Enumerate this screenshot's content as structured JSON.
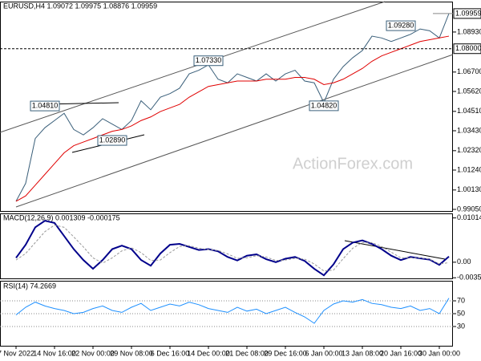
{
  "chart_data": [
    {
      "type": "line",
      "title": "EURUSD,H4 1.09072 1.09975 1.08876 1.09959",
      "watermark": "ActionForex.com",
      "series": [
        {
          "color": "#3a5f7a",
          "values": [
            0.995,
            1.005,
            1.03,
            1.036,
            1.04,
            1.044,
            1.035,
            1.032,
            1.036,
            1.041,
            1.038,
            1.035,
            1.04,
            1.051,
            1.046,
            1.053,
            1.055,
            1.058,
            1.066,
            1.068,
            1.071,
            1.063,
            1.061,
            1.066,
            1.064,
            1.062,
            1.066,
            1.062,
            1.066,
            1.068,
            1.062,
            1.061,
            1.05,
            1.063,
            1.07,
            1.075,
            1.079,
            1.087,
            1.086,
            1.084,
            1.086,
            1.088,
            1.091,
            1.09,
            1.086,
            1.0996
          ]
        },
        {
          "color": "#e00000",
          "values": [
            0.995,
            0.998,
            1.004,
            1.01,
            1.016,
            1.022,
            1.026,
            1.028,
            1.03,
            1.032,
            1.034,
            1.035,
            1.037,
            1.04,
            1.042,
            1.045,
            1.047,
            1.049,
            1.053,
            1.056,
            1.059,
            1.06,
            1.061,
            1.062,
            1.062,
            1.062,
            1.063,
            1.063,
            1.063,
            1.064,
            1.064,
            1.063,
            1.06,
            1.061,
            1.063,
            1.066,
            1.069,
            1.073,
            1.076,
            1.078,
            1.08,
            1.082,
            1.084,
            1.085,
            1.086,
            1.087
          ]
        }
      ],
      "ylim": [
        0.9896,
        1.1058
      ],
      "yticks": [
        {
          "value": 0.9905,
          "label": "0.99050"
        },
        {
          "value": 1.0013,
          "label": "1.00130"
        },
        {
          "value": 1.0124,
          "label": "1.01240"
        },
        {
          "value": 1.0232,
          "label": "1.02320"
        },
        {
          "value": 1.0343,
          "label": "1.03430"
        },
        {
          "value": 1.0451,
          "label": "1.04510"
        },
        {
          "value": 1.0562,
          "label": "1.05620"
        },
        {
          "value": 1.067,
          "label": "1.06700"
        },
        {
          "value": 1.0893,
          "label": "1.08930"
        }
      ],
      "last_price": {
        "value": 1.09959,
        "label": "1.09959"
      },
      "level": {
        "value": 1.08,
        "label": "1.08000"
      },
      "annotations": [
        {
          "value": 1.0481,
          "label": "1.04810"
        },
        {
          "value": 1.0289,
          "label": "1.02890"
        },
        {
          "value": 1.0733,
          "label": "1.07330"
        },
        {
          "value": 1.0482,
          "label": "1.04820"
        },
        {
          "value": 1.0928,
          "label": "1.09280"
        }
      ]
    },
    {
      "type": "line",
      "title": "MACD(12,26,9) 0.001309 -0.000175",
      "series": [
        {
          "color": "#00008b",
          "values": [
            0.001,
            0.004,
            0.008,
            0.0095,
            0.009,
            0.006,
            0.003,
            0.0005,
            -0.0015,
            0.0005,
            0.003,
            0.0038,
            0.003,
            0.0005,
            -0.0008,
            0.002,
            0.004,
            0.0042,
            0.0035,
            0.0028,
            0.003,
            0.0025,
            0.0012,
            0.0004,
            0.0015,
            0.0018,
            0.0007,
            0,
            0.0008,
            0.0012,
            0.0003,
            -0.0015,
            -0.003,
            -0.0005,
            0.003,
            0.0045,
            0.005,
            0.0042,
            0.003,
            0.0015,
            0.0005,
            0.0012,
            0.0009,
            0.0006,
            -0.0006,
            0.0013
          ]
        },
        {
          "color": "#999999",
          "values": [
            0.0005,
            0.002,
            0.0045,
            0.007,
            0.0085,
            0.008,
            0.0058,
            0.0035,
            0.001,
            -0.0002,
            0.001,
            0.0026,
            0.0033,
            0.0022,
            0.0004,
            0.0005,
            0.0022,
            0.0036,
            0.0038,
            0.0032,
            0.0029,
            0.0027,
            0.0019,
            0.0009,
            0.001,
            0.0015,
            0.0012,
            0.0004,
            0.0005,
            0.0009,
            0.0007,
            -0.0004,
            -0.002,
            -0.0018,
            0.0008,
            0.0032,
            0.0045,
            0.0045,
            0.0036,
            0.0023,
            0.001,
            0.001,
            0.001,
            0.0007,
            -0.0004,
            -0.0001
          ]
        }
      ],
      "ylim": [
        -0.0037,
        0.011
      ],
      "yticks": [
        0.010145,
        {
          "value": 0,
          "label": "0.00"
        },
        -0.003563
      ]
    },
    {
      "type": "line",
      "title": "RSI(14) 74.2669",
      "series": [
        {
          "color": "#1e90ff",
          "values": [
            48,
            60,
            68,
            62,
            58,
            55,
            50,
            52,
            58,
            62,
            55,
            52,
            60,
            66,
            55,
            60,
            65,
            62,
            68,
            64,
            58,
            55,
            52,
            60,
            54,
            57,
            50,
            55,
            60,
            52,
            45,
            35,
            55,
            65,
            70,
            68,
            72,
            66,
            64,
            60,
            58,
            62,
            55,
            58,
            50,
            74.2669
          ]
        }
      ],
      "ylim": [
        0,
        100
      ],
      "yticks": [
        30,
        50,
        70
      ],
      "grid": "dotted",
      "categories": [
        "7 Nov 2022",
        null,
        null,
        null,
        "14 Nov 16:00",
        null,
        null,
        null,
        "22 Nov 00:00",
        null,
        null,
        null,
        "29 Nov 08:00",
        null,
        null,
        null,
        "6 Dec 16:00",
        null,
        null,
        null,
        "14 Dec 00:00",
        null,
        null,
        null,
        "21 Dec 08:00",
        null,
        null,
        null,
        "29 Dec 16:00",
        null,
        null,
        null,
        "6 Jan 00:00",
        null,
        null,
        null,
        "13 Jan 08:00",
        null,
        null,
        null,
        "20 Jan 16:00",
        null,
        null,
        null,
        "30 Jan 00:00",
        null
      ]
    }
  ]
}
